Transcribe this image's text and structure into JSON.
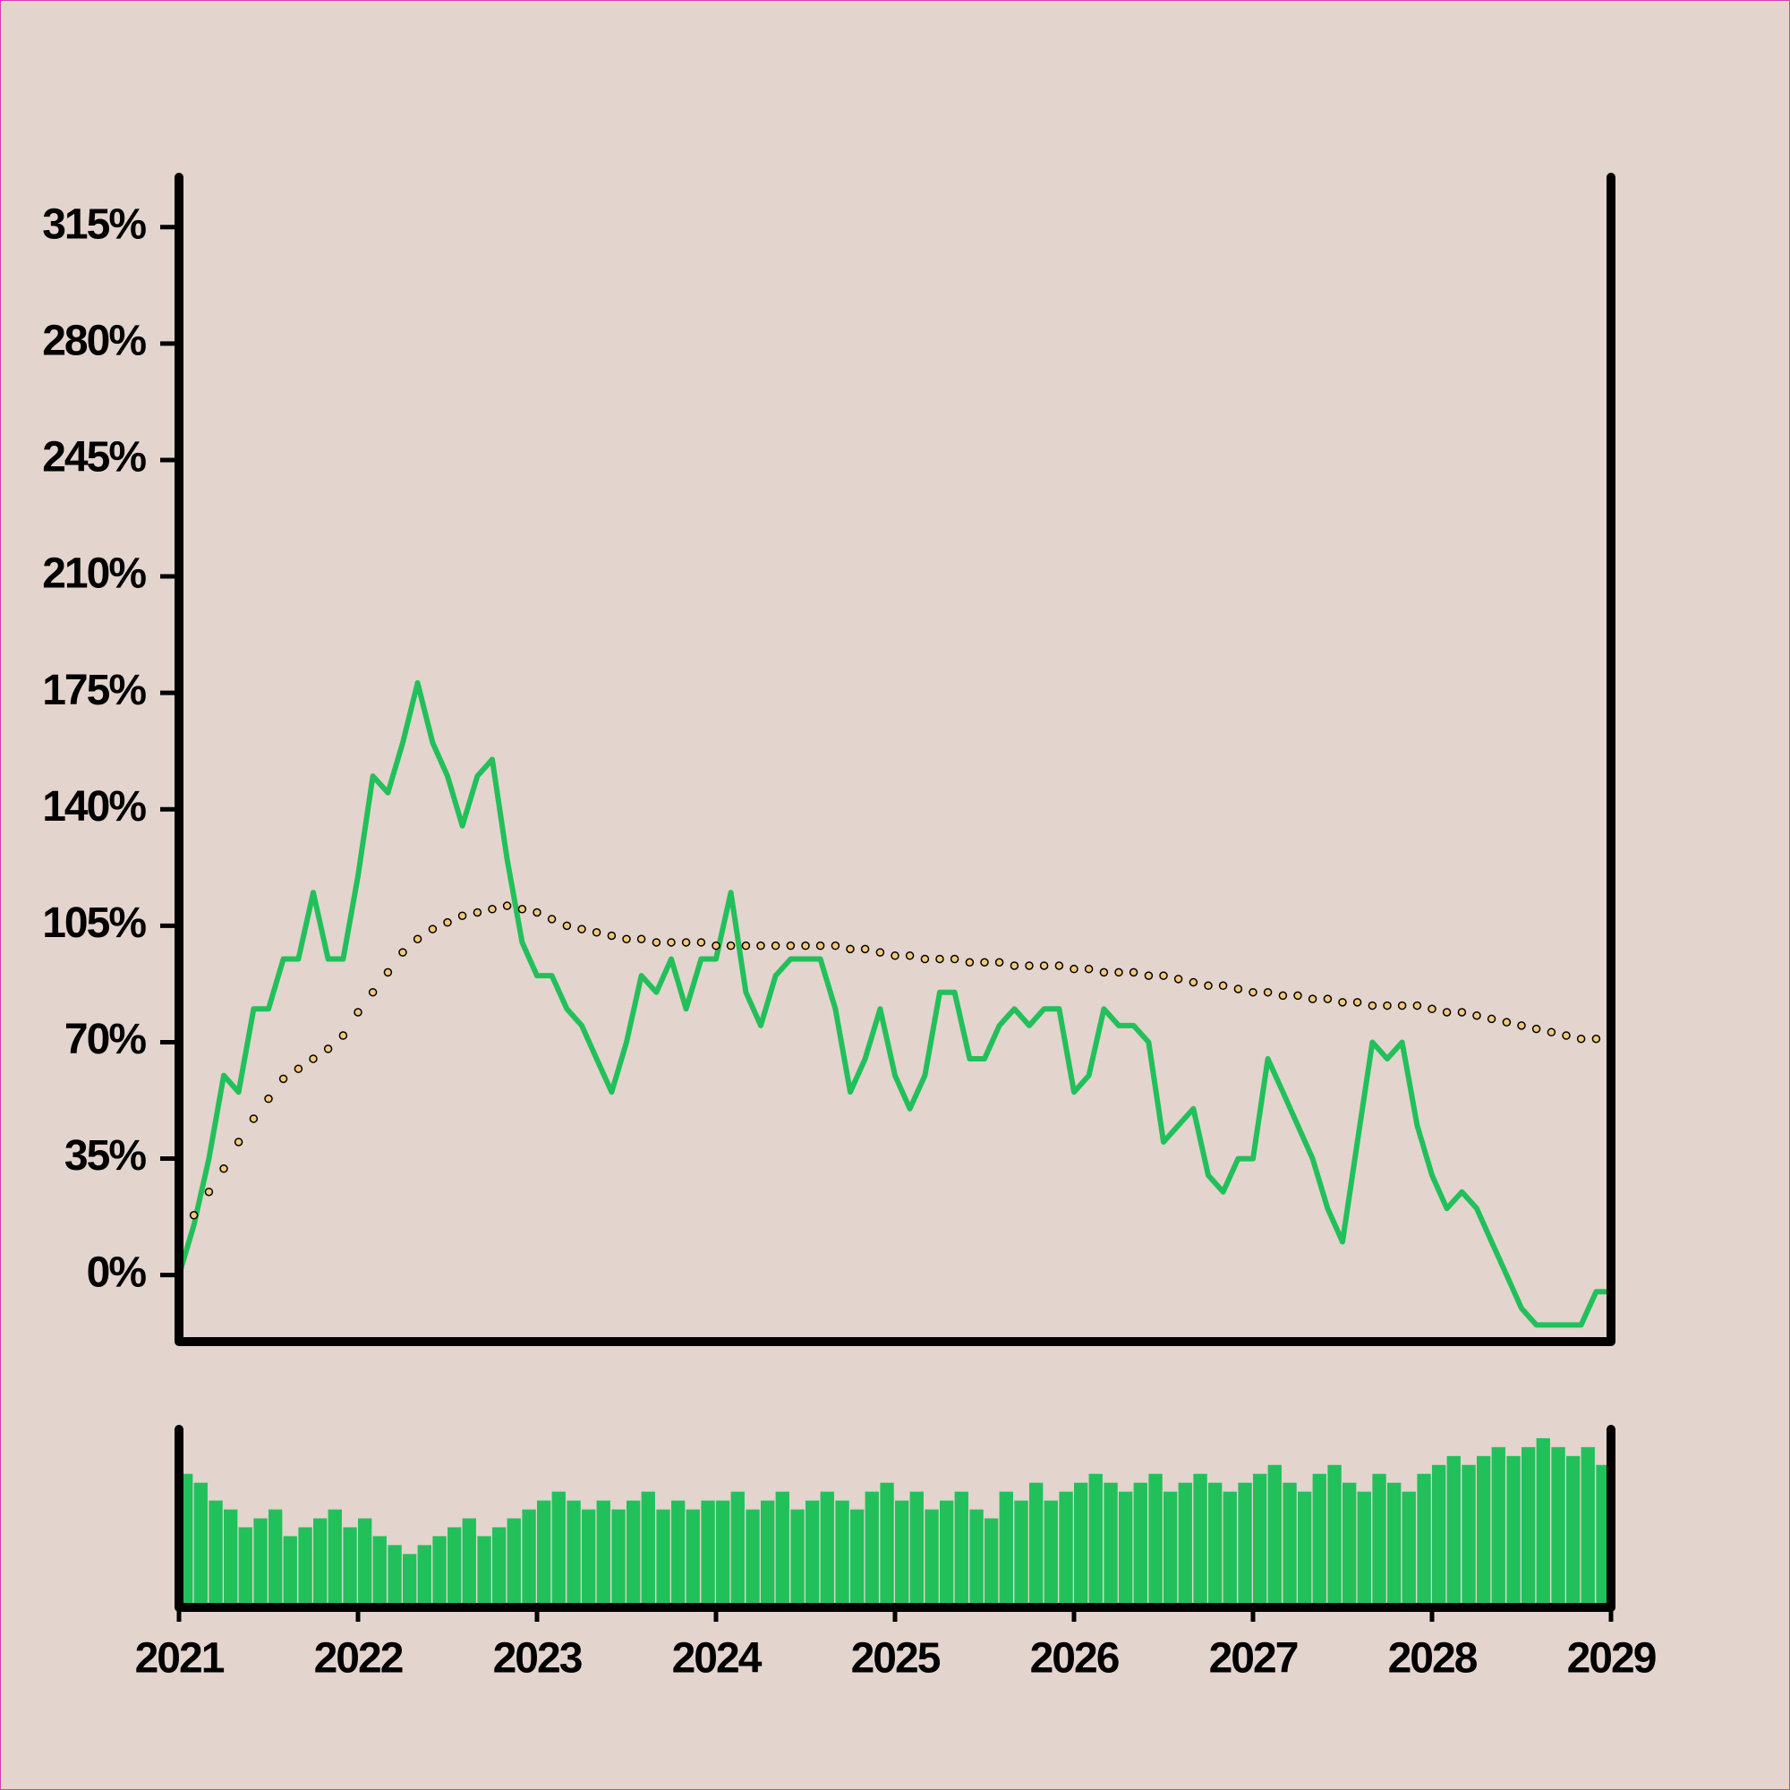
{
  "chart_data": [
    {
      "type": "line",
      "x": [
        2021,
        2021.083,
        2021.167,
        2021.25,
        2021.333,
        2021.417,
        2021.5,
        2021.583,
        2021.667,
        2021.75,
        2021.833,
        2021.917,
        2022,
        2022.083,
        2022.167,
        2022.25,
        2022.333,
        2022.417,
        2022.5,
        2022.583,
        2022.667,
        2022.75,
        2022.833,
        2022.917,
        2023,
        2023.083,
        2023.167,
        2023.25,
        2023.333,
        2023.417,
        2023.5,
        2023.583,
        2023.667,
        2023.75,
        2023.833,
        2023.917,
        2024,
        2024.083,
        2024.167,
        2024.25,
        2024.333,
        2024.417,
        2024.5,
        2024.583,
        2024.667,
        2024.75,
        2024.833,
        2024.917,
        2025,
        2025.083,
        2025.167,
        2025.25,
        2025.333,
        2025.417,
        2025.5,
        2025.583,
        2025.667,
        2025.75,
        2025.833,
        2025.917,
        2026,
        2026.083,
        2026.167,
        2026.25,
        2026.333,
        2026.417,
        2026.5,
        2026.583,
        2026.667,
        2026.75,
        2026.833,
        2026.917,
        2027,
        2027.083,
        2027.167,
        2027.25,
        2027.333,
        2027.417,
        2027.5,
        2027.583,
        2027.667,
        2027.75,
        2027.833,
        2027.917,
        2028,
        2028.083,
        2028.167,
        2028.25,
        2028.333,
        2028.417,
        2028.5,
        2028.583,
        2028.667,
        2028.75,
        2028.833,
        2028.917,
        2029
      ],
      "series": [
        {
          "style": "line",
          "color": "#22c05a",
          "values": [
            0,
            15,
            35,
            60,
            55,
            80,
            80,
            95,
            95,
            115,
            95,
            95,
            120,
            150,
            145,
            160,
            178,
            160,
            150,
            135,
            150,
            155,
            125,
            100,
            90,
            90,
            80,
            75,
            65,
            55,
            70,
            90,
            85,
            95,
            80,
            95,
            95,
            115,
            85,
            75,
            90,
            95,
            95,
            95,
            80,
            55,
            65,
            80,
            60,
            50,
            60,
            85,
            85,
            65,
            65,
            75,
            80,
            75,
            80,
            80,
            55,
            60,
            80,
            75,
            75,
            70,
            40,
            45,
            50,
            30,
            25,
            35,
            35,
            65,
            55,
            45,
            35,
            20,
            10,
            40,
            70,
            65,
            70,
            45,
            30,
            20,
            25,
            20,
            10,
            0,
            -10,
            -15,
            -15,
            -15,
            -15,
            -5,
            -5
          ]
        },
        {
          "style": "dots",
          "color": "#f5c97a",
          "values": [
            6,
            18,
            25,
            32,
            40,
            47,
            53,
            59,
            62,
            65,
            68,
            72,
            79,
            85,
            91,
            97,
            101,
            104,
            106,
            108,
            109,
            110,
            111,
            110,
            109,
            107,
            105,
            104,
            103,
            102,
            101,
            101,
            100,
            100,
            100,
            100,
            99,
            99,
            99,
            99,
            99,
            99,
            99,
            99,
            99,
            98,
            98,
            97,
            96,
            96,
            95,
            95,
            95,
            94,
            94,
            94,
            93,
            93,
            93,
            93,
            92,
            92,
            91,
            91,
            91,
            90,
            90,
            89,
            88,
            87,
            87,
            86,
            85,
            85,
            84,
            84,
            83,
            83,
            82,
            82,
            81,
            81,
            81,
            81,
            80,
            79,
            79,
            78,
            77,
            76,
            75,
            74,
            73,
            72,
            71,
            71,
            70
          ]
        }
      ],
      "xlim": [
        2021,
        2029
      ],
      "ylim": [
        -20,
        330
      ],
      "yticks": [
        {
          "value": 0,
          "label": "0%"
        },
        {
          "value": 35,
          "label": "35%"
        },
        {
          "value": 70,
          "label": "70%"
        },
        {
          "value": 105,
          "label": "105%"
        },
        {
          "value": 140,
          "label": "140%"
        },
        {
          "value": 175,
          "label": "175%"
        },
        {
          "value": 210,
          "label": "210%"
        },
        {
          "value": 245,
          "label": "245%"
        },
        {
          "value": 280,
          "label": "280%"
        },
        {
          "value": 315,
          "label": "315%"
        }
      ]
    },
    {
      "type": "bar",
      "x": [
        2021,
        2021.083,
        2021.167,
        2021.25,
        2021.333,
        2021.417,
        2021.5,
        2021.583,
        2021.667,
        2021.75,
        2021.833,
        2021.917,
        2022,
        2022.083,
        2022.167,
        2022.25,
        2022.333,
        2022.417,
        2022.5,
        2022.583,
        2022.667,
        2022.75,
        2022.833,
        2022.917,
        2023,
        2023.083,
        2023.167,
        2023.25,
        2023.333,
        2023.417,
        2023.5,
        2023.583,
        2023.667,
        2023.75,
        2023.833,
        2023.917,
        2024,
        2024.083,
        2024.167,
        2024.25,
        2024.333,
        2024.417,
        2024.5,
        2024.583,
        2024.667,
        2024.75,
        2024.833,
        2024.917,
        2025,
        2025.083,
        2025.167,
        2025.25,
        2025.333,
        2025.417,
        2025.5,
        2025.583,
        2025.667,
        2025.75,
        2025.833,
        2025.917,
        2026,
        2026.083,
        2026.167,
        2026.25,
        2026.333,
        2026.417,
        2026.5,
        2026.583,
        2026.667,
        2026.75,
        2026.833,
        2026.917,
        2027,
        2027.083,
        2027.167,
        2027.25,
        2027.333,
        2027.417,
        2027.5,
        2027.583,
        2027.667,
        2027.75,
        2027.833,
        2027.917,
        2028,
        2028.083,
        2028.167,
        2028.25,
        2028.333,
        2028.417,
        2028.5,
        2028.583,
        2028.667,
        2028.75,
        2028.833,
        2028.917,
        2029
      ],
      "color": "#22c05a",
      "values": [
        75,
        70,
        60,
        55,
        45,
        50,
        55,
        40,
        45,
        50,
        55,
        45,
        50,
        40,
        35,
        30,
        35,
        40,
        45,
        50,
        40,
        45,
        50,
        55,
        60,
        65,
        60,
        55,
        60,
        55,
        60,
        65,
        55,
        60,
        55,
        60,
        60,
        65,
        55,
        60,
        65,
        55,
        60,
        65,
        60,
        55,
        65,
        70,
        60,
        65,
        55,
        60,
        65,
        55,
        50,
        65,
        60,
        70,
        60,
        65,
        70,
        75,
        70,
        65,
        70,
        75,
        65,
        70,
        75,
        70,
        65,
        70,
        75,
        80,
        70,
        65,
        75,
        80,
        70,
        65,
        75,
        70,
        65,
        75,
        80,
        85,
        80,
        85,
        90,
        85,
        90,
        95,
        90,
        85,
        90,
        80,
        75
      ],
      "xlim": [
        2021,
        2029
      ],
      "ylim": [
        0,
        100
      ],
      "xticks": [
        2021,
        2022,
        2023,
        2024,
        2025,
        2026,
        2027,
        2028,
        2029
      ]
    }
  ]
}
